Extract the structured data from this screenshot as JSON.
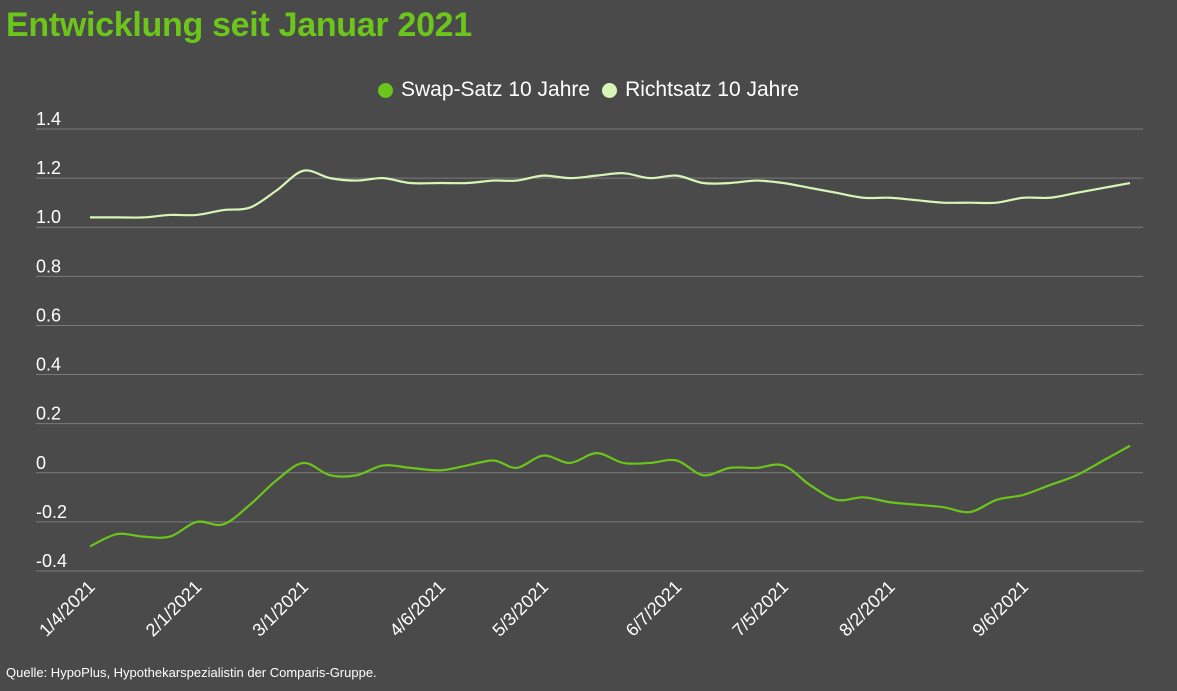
{
  "title": "Entwicklung seit Januar 2021",
  "source": "Quelle: HypoPlus, Hypothekarspezialistin der Comparis-Gruppe.",
  "colors": {
    "background": "#4a4a4a",
    "title": "#6cc51a",
    "swap": "#6cc51a",
    "richtsatz": "#d8f5b8",
    "grid": "#7a7a7a",
    "text": "#ffffff"
  },
  "chart_data": {
    "type": "line",
    "title": "Entwicklung seit Januar 2021",
    "y_ticks": [
      "1.4",
      "1.2",
      "1.0",
      "0.8",
      "0.6",
      "0.4",
      "0.2",
      "0",
      "-0.2",
      "-0.4"
    ],
    "ylim": [
      -0.4,
      1.4
    ],
    "x_range": [
      "2021-01-04",
      "2021-10-04"
    ],
    "x_ticks": [
      {
        "label": "1/4/2021",
        "date": "2021-01-04"
      },
      {
        "label": "2/1/2021",
        "date": "2021-02-01"
      },
      {
        "label": "3/1/2021",
        "date": "2021-03-01"
      },
      {
        "label": "4/6/2021",
        "date": "2021-04-06"
      },
      {
        "label": "5/3/2021",
        "date": "2021-05-03"
      },
      {
        "label": "6/7/2021",
        "date": "2021-06-07"
      },
      {
        "label": "7/5/2021",
        "date": "2021-07-05"
      },
      {
        "label": "8/2/2021",
        "date": "2021-08-02"
      },
      {
        "label": "9/6/2021",
        "date": "2021-09-06"
      }
    ],
    "legend_position": "top-center",
    "grid": true,
    "series": [
      {
        "name": "Swap-Satz 10 Jahre",
        "color": "#6cc51a",
        "points": [
          [
            "2021-01-04",
            -0.3
          ],
          [
            "2021-01-11",
            -0.25
          ],
          [
            "2021-01-18",
            -0.26
          ],
          [
            "2021-01-25",
            -0.26
          ],
          [
            "2021-02-01",
            -0.2
          ],
          [
            "2021-02-08",
            -0.21
          ],
          [
            "2021-02-15",
            -0.13
          ],
          [
            "2021-02-22",
            -0.03
          ],
          [
            "2021-03-01",
            0.04
          ],
          [
            "2021-03-08",
            -0.01
          ],
          [
            "2021-03-15",
            -0.01
          ],
          [
            "2021-03-22",
            0.03
          ],
          [
            "2021-03-29",
            0.02
          ],
          [
            "2021-04-06",
            0.01
          ],
          [
            "2021-04-13",
            0.03
          ],
          [
            "2021-04-20",
            0.05
          ],
          [
            "2021-04-26",
            0.02
          ],
          [
            "2021-05-03",
            0.07
          ],
          [
            "2021-05-10",
            0.04
          ],
          [
            "2021-05-17",
            0.08
          ],
          [
            "2021-05-24",
            0.04
          ],
          [
            "2021-05-31",
            0.04
          ],
          [
            "2021-06-07",
            0.05
          ],
          [
            "2021-06-14",
            -0.01
          ],
          [
            "2021-06-21",
            0.02
          ],
          [
            "2021-06-28",
            0.02
          ],
          [
            "2021-07-05",
            0.03
          ],
          [
            "2021-07-12",
            -0.05
          ],
          [
            "2021-07-19",
            -0.11
          ],
          [
            "2021-07-26",
            -0.1
          ],
          [
            "2021-08-02",
            -0.12
          ],
          [
            "2021-08-09",
            -0.13
          ],
          [
            "2021-08-16",
            -0.14
          ],
          [
            "2021-08-23",
            -0.16
          ],
          [
            "2021-08-30",
            -0.11
          ],
          [
            "2021-09-06",
            -0.09
          ],
          [
            "2021-09-13",
            -0.05
          ],
          [
            "2021-09-20",
            -0.01
          ],
          [
            "2021-09-27",
            0.05
          ],
          [
            "2021-10-04",
            0.11
          ]
        ]
      },
      {
        "name": "Richtsatz 10 Jahre",
        "color": "#d8f5b8",
        "points": [
          [
            "2021-01-04",
            1.04
          ],
          [
            "2021-01-11",
            1.04
          ],
          [
            "2021-01-18",
            1.04
          ],
          [
            "2021-01-25",
            1.05
          ],
          [
            "2021-02-01",
            1.05
          ],
          [
            "2021-02-08",
            1.07
          ],
          [
            "2021-02-15",
            1.08
          ],
          [
            "2021-02-22",
            1.15
          ],
          [
            "2021-03-01",
            1.23
          ],
          [
            "2021-03-08",
            1.2
          ],
          [
            "2021-03-15",
            1.19
          ],
          [
            "2021-03-22",
            1.2
          ],
          [
            "2021-03-29",
            1.18
          ],
          [
            "2021-04-06",
            1.18
          ],
          [
            "2021-04-13",
            1.18
          ],
          [
            "2021-04-20",
            1.19
          ],
          [
            "2021-04-26",
            1.19
          ],
          [
            "2021-05-03",
            1.21
          ],
          [
            "2021-05-10",
            1.2
          ],
          [
            "2021-05-17",
            1.21
          ],
          [
            "2021-05-24",
            1.22
          ],
          [
            "2021-05-31",
            1.2
          ],
          [
            "2021-06-07",
            1.21
          ],
          [
            "2021-06-14",
            1.18
          ],
          [
            "2021-06-21",
            1.18
          ],
          [
            "2021-06-28",
            1.19
          ],
          [
            "2021-07-05",
            1.18
          ],
          [
            "2021-07-12",
            1.16
          ],
          [
            "2021-07-19",
            1.14
          ],
          [
            "2021-07-26",
            1.12
          ],
          [
            "2021-08-02",
            1.12
          ],
          [
            "2021-08-09",
            1.11
          ],
          [
            "2021-08-16",
            1.1
          ],
          [
            "2021-08-23",
            1.1
          ],
          [
            "2021-08-30",
            1.1
          ],
          [
            "2021-09-06",
            1.12
          ],
          [
            "2021-09-13",
            1.12
          ],
          [
            "2021-09-20",
            1.14
          ],
          [
            "2021-09-27",
            1.16
          ],
          [
            "2021-10-04",
            1.18
          ]
        ]
      }
    ]
  }
}
